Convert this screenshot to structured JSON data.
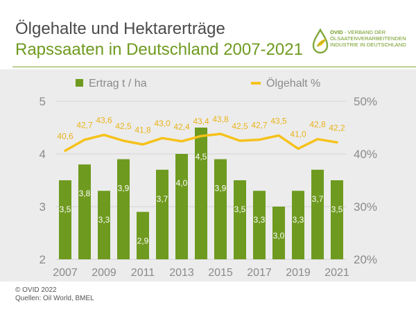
{
  "title_line1": "Ölgehalte und Hektarerträge",
  "title_line2": "Rapssaaten in Deutschland 2007-2021",
  "logo": {
    "org": "OVID",
    "line1_rest": " - VERBAND DER",
    "line2": "ÖLSAATENVERARBEITENDEN",
    "line3": "INDUSTRIE IN DEUTSCHLAND",
    "icon": "oil-drop-leaf-icon"
  },
  "footer": {
    "copyright": "© OVID 2022",
    "sources": "Quellen: Oil World, BMEL"
  },
  "colors": {
    "bar": "#6e9a1f",
    "line": "#f5c21b",
    "line_label": "#eab31a",
    "axis_text": "#8a8a8a",
    "grid": "#d4d4d4",
    "panel": "#ececec",
    "bar_label": "#ffffff"
  },
  "chart_data": {
    "type": "bar",
    "x": [
      2007,
      2008,
      2009,
      2010,
      2011,
      2012,
      2013,
      2014,
      2015,
      2016,
      2017,
      2018,
      2019,
      2020,
      2021
    ],
    "x_tick_labels": [
      "2007",
      "2009",
      "2011",
      "2013",
      "2015",
      "2017",
      "2019",
      "2021"
    ],
    "x_tick_values": [
      2007,
      2009,
      2011,
      2013,
      2015,
      2017,
      2019,
      2021
    ],
    "series": [
      {
        "name": "Ertrag t / ha",
        "type": "bar",
        "axis": "left",
        "values": [
          3.5,
          3.8,
          3.3,
          3.9,
          2.9,
          3.7,
          4.0,
          4.5,
          3.9,
          3.5,
          3.3,
          3.0,
          3.3,
          3.7,
          3.5
        ],
        "labels": [
          "3,5",
          "3,8",
          "3,3",
          "3,9",
          "2,9",
          "3,7",
          "4,0",
          "4,5",
          "3,9",
          "3,5",
          "3,3",
          "3,0",
          "3,3",
          "3,7",
          "3,5"
        ]
      },
      {
        "name": "Ölgehalt %",
        "type": "line",
        "axis": "right",
        "values": [
          40.6,
          42.7,
          43.6,
          42.5,
          41.8,
          43.0,
          42.4,
          43.4,
          43.8,
          42.5,
          42.7,
          43.5,
          41.0,
          42.8,
          42.2
        ],
        "labels": [
          "40,6",
          "42,7",
          "43,6",
          "42,5",
          "41,8",
          "43,0",
          "42,4",
          "43,4",
          "43,8",
          "42,5",
          "42,7",
          "43,5",
          "41,0",
          "42,8",
          "42,2"
        ]
      }
    ],
    "y_left": {
      "ylim": [
        2,
        5
      ],
      "ticks": [
        2,
        3,
        4,
        5
      ],
      "tick_labels": [
        "2",
        "3",
        "4",
        "5"
      ]
    },
    "y_right": {
      "ylim": [
        20,
        50
      ],
      "ticks": [
        20,
        30,
        40,
        50
      ],
      "tick_labels": [
        "20%",
        "30%",
        "40%",
        "50%"
      ]
    },
    "grid": true,
    "legend": "top"
  }
}
